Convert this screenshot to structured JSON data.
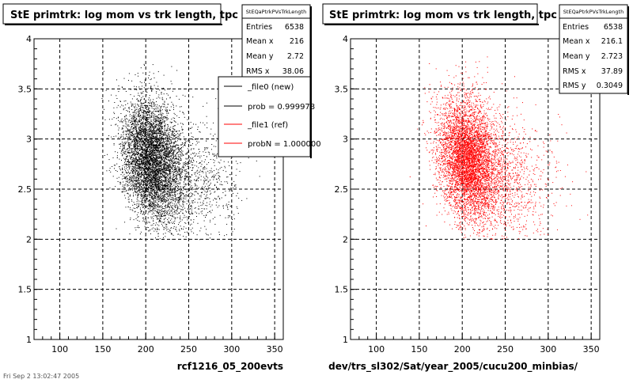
{
  "colors": {
    "left_points": "#000000",
    "right_points": "#ff0000",
    "legend_new_line": "#000000",
    "legend_ref_line": "#ff0000"
  },
  "chart_data": [
    {
      "type": "scatter",
      "title": "StE primtrk: log mom vs trk length, tpc",
      "xlabel": "rcf1216_05_200evts",
      "ylabel": "",
      "xlim": [
        70,
        360
      ],
      "ylim": [
        1,
        4
      ],
      "x_ticks": [
        100,
        150,
        200,
        250,
        300,
        350
      ],
      "y_ticks": [
        1,
        1.5,
        2,
        2.5,
        3,
        3.5,
        4
      ],
      "grid": true,
      "stats": {
        "name": "StEQaPtrkPVsTrkLength",
        "rows": [
          {
            "label": "Entries",
            "value": "6538"
          },
          {
            "label": "Mean x",
            "value": "216"
          },
          {
            "label": "Mean y",
            "value": "2.72"
          },
          {
            "label": "RMS x",
            "value": "38.06"
          }
        ]
      },
      "legend": {
        "placement": "right",
        "entries": [
          {
            "label": "_file0 (new)",
            "color": "#000000"
          },
          {
            "label": "prob = 0.999978",
            "color": "#000000"
          },
          {
            "label": "_file1 (ref)",
            "color": "#ff0000"
          },
          {
            "label": "probN = 1.000000",
            "color": "#ff0000"
          }
        ]
      },
      "series": [
        {
          "color": "#000000",
          "entries": 6538,
          "clusters": [
            {
              "fraction": 0.8,
              "x_mean": 206,
              "x_sd": 17,
              "y_mean": 2.8,
              "y_sd": 0.3,
              "corr": -0.2
            },
            {
              "fraction": 0.2,
              "x_mean": 245,
              "x_sd": 30,
              "y_mean": 2.6,
              "y_sd": 0.32,
              "corr": -0.1
            }
          ],
          "x_range": [
            80,
            350
          ],
          "y_range": [
            2.0,
            3.9
          ]
        }
      ],
      "footer_text": "Fri Sep 2 13:02:47 2005"
    },
    {
      "type": "scatter",
      "title": "StE primtrk: log mom vs trk length, tpc",
      "xlabel": "dev/trs_sl302/Sat/year_2005/cucu200_minbias/",
      "ylabel": "",
      "xlim": [
        70,
        360
      ],
      "ylim": [
        1,
        4
      ],
      "x_ticks": [
        100,
        150,
        200,
        250,
        300,
        350
      ],
      "y_ticks": [
        1,
        1.5,
        2,
        2.5,
        3,
        3.5,
        4
      ],
      "grid": true,
      "stats": {
        "name": "StEQaPtrkPVsTrkLength",
        "rows": [
          {
            "label": "Entries",
            "value": "6538"
          },
          {
            "label": "Mean x",
            "value": "216.1"
          },
          {
            "label": "Mean y",
            "value": "2.723"
          },
          {
            "label": "RMS x",
            "value": "37.89"
          },
          {
            "label": "RMS y",
            "value": "0.3049"
          }
        ]
      },
      "series": [
        {
          "color": "#ff0000",
          "entries": 6538,
          "clusters": [
            {
              "fraction": 0.8,
              "x_mean": 206,
              "x_sd": 17,
              "y_mean": 2.8,
              "y_sd": 0.3,
              "corr": -0.2
            },
            {
              "fraction": 0.2,
              "x_mean": 245,
              "x_sd": 30,
              "y_mean": 2.6,
              "y_sd": 0.32,
              "corr": -0.1
            }
          ],
          "x_range": [
            80,
            350
          ],
          "y_range": [
            2.0,
            3.9
          ]
        }
      ]
    }
  ]
}
